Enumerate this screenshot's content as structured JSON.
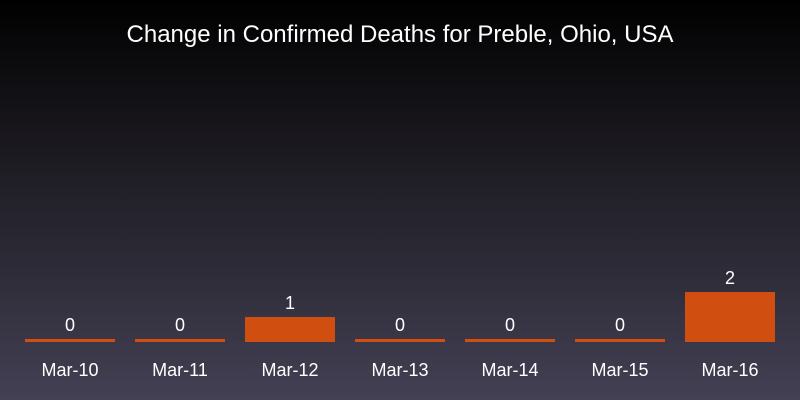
{
  "chart_data": {
    "type": "bar",
    "title": "Change in Confirmed Deaths for Preble, Ohio, USA",
    "categories": [
      "Mar-10",
      "Mar-11",
      "Mar-12",
      "Mar-13",
      "Mar-14",
      "Mar-15",
      "Mar-16"
    ],
    "values": [
      0,
      0,
      1,
      0,
      0,
      0,
      2
    ],
    "data_labels": [
      "0",
      "0",
      "1",
      "0",
      "0",
      "0",
      "2"
    ],
    "xlabel": "",
    "ylabel": "",
    "ylim": [
      0,
      2
    ],
    "grid": false,
    "legend": "none",
    "bar_color": "#d04e0f"
  }
}
